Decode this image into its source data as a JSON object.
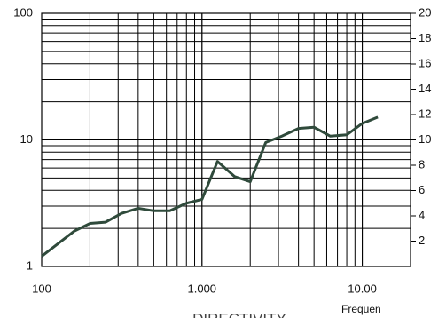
{
  "chart_data": {
    "type": "line",
    "title": "DIRECTIVITY",
    "xlabel": "Frequen",
    "x": [
      100,
      160,
      200,
      250,
      315,
      400,
      500,
      630,
      800,
      1000,
      1250,
      1600,
      2000,
      2500,
      3150,
      4000,
      5000,
      6300,
      8000,
      10000,
      12500
    ],
    "xlog": true,
    "xlim": [
      100,
      20000
    ],
    "xticks": [
      100,
      {
        "value": 1000,
        "label": "1.000"
      },
      {
        "value": 10000,
        "label": "10.00"
      }
    ],
    "ylog": true,
    "ylim": [
      1,
      100
    ],
    "yticks": [
      1,
      10,
      100
    ],
    "y2lim": [
      0,
      20
    ],
    "y2ticks": [
      2,
      4,
      6,
      8,
      10,
      12,
      14,
      16,
      18,
      20
    ],
    "grid": true,
    "series": [
      {
        "color": "#2f4a3b",
        "axis": "y2",
        "values": [
          0.8,
          2.8,
          3.4,
          3.5,
          4.2,
          4.6,
          4.4,
          4.4,
          5.0,
          5.3,
          8.3,
          7.1,
          6.7,
          9.8,
          10.3,
          10.9,
          11.0,
          10.3,
          10.4,
          11.3,
          11.8
        ]
      }
    ]
  }
}
